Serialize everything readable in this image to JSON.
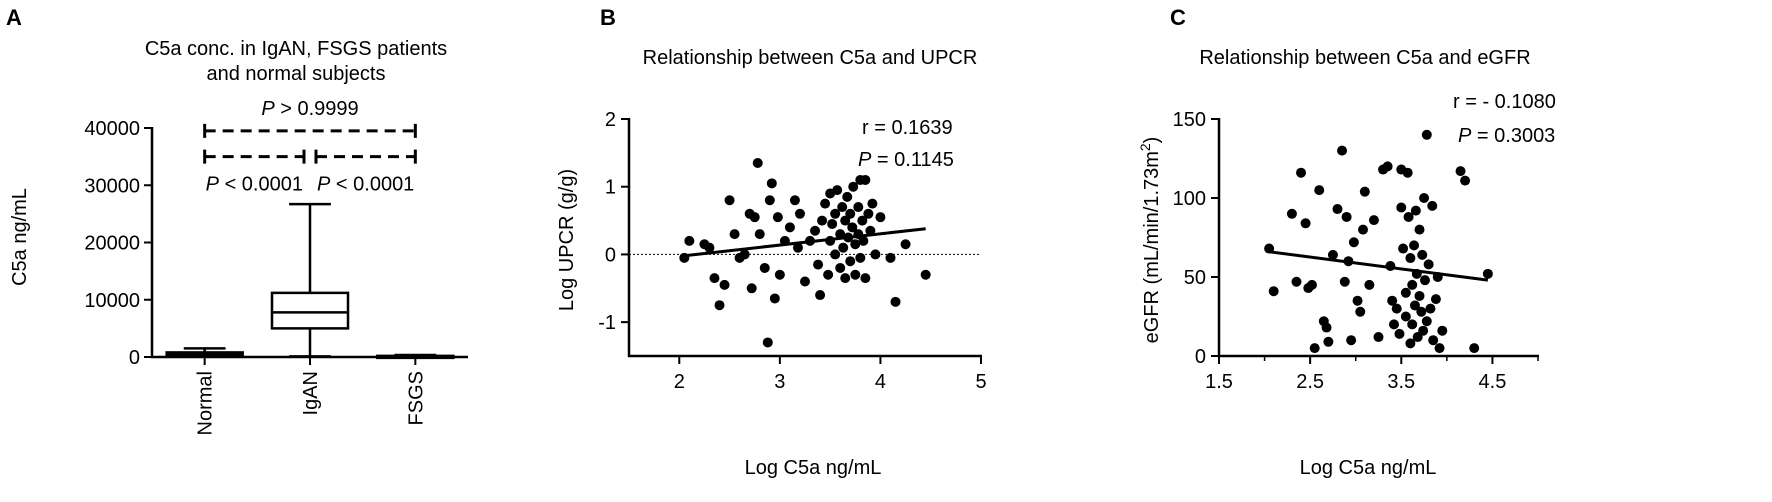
{
  "chart_data": [
    {
      "type": "box",
      "panel_label": "A",
      "title_lines": [
        "C5a conc. in IgAN, FSGS patients",
        "and normal subjects"
      ],
      "ylabel": "C5a ng/mL",
      "ylim": [
        0,
        40000
      ],
      "yticks": [
        0,
        10000,
        20000,
        30000,
        40000
      ],
      "categories": [
        "Normal",
        "IgAN",
        "FSGS"
      ],
      "boxes": [
        {
          "name": "Normal",
          "min": 80,
          "q1": 250,
          "median": 500,
          "q3": 800,
          "max": 1500,
          "fill": "#bdbdbd"
        },
        {
          "name": "IgAN",
          "min": 100,
          "q1": 5000,
          "median": 7800,
          "q3": 11200,
          "max": 26700,
          "fill": "#ffffff"
        },
        {
          "name": "FSGS",
          "min": 20,
          "q1": 60,
          "median": 120,
          "q3": 200,
          "max": 350,
          "fill": "#ffffff"
        }
      ],
      "annotations": [
        {
          "pair": [
            "Normal",
            "FSGS"
          ],
          "y": 39500,
          "label_italic": "P",
          "label_rest": " > 0.9999",
          "label_pos": "above"
        },
        {
          "pair": [
            "Normal",
            "IgAN"
          ],
          "y": 35000,
          "label_italic": "P",
          "label_rest": " < 0.0001",
          "label_pos": "below"
        },
        {
          "pair": [
            "IgAN",
            "FSGS"
          ],
          "y": 35000,
          "label_italic": "P",
          "label_rest": " < 0.0001",
          "label_pos": "below"
        }
      ]
    },
    {
      "type": "scatter",
      "panel_label": "B",
      "title": "Relationship between C5a and UPCR",
      "xlabel": "Log C5a ng/mL",
      "ylabel": "Log UPCR (g/g)",
      "xlim": [
        1.5,
        5
      ],
      "ylim": [
        -1.5,
        2
      ],
      "xticks": [
        2,
        3,
        4,
        5
      ],
      "yticks": [
        -1,
        0,
        1,
        2
      ],
      "reference_line_y": 0,
      "regression": {
        "x": [
          2.05,
          4.45
        ],
        "y": [
          -0.02,
          0.38
        ]
      },
      "stats": {
        "r_text": "r = 0.1639",
        "p_italic": "P",
        "p_rest": " = 0.1145"
      },
      "points": [
        [
          2.05,
          -0.05
        ],
        [
          2.1,
          0.2
        ],
        [
          2.25,
          0.15
        ],
        [
          2.3,
          0.1
        ],
        [
          2.35,
          -0.35
        ],
        [
          2.4,
          -0.75
        ],
        [
          2.45,
          -0.45
        ],
        [
          2.5,
          0.8
        ],
        [
          2.55,
          0.3
        ],
        [
          2.6,
          -0.05
        ],
        [
          2.65,
          0.0
        ],
        [
          2.7,
          0.6
        ],
        [
          2.72,
          -0.5
        ],
        [
          2.75,
          0.55
        ],
        [
          2.78,
          1.35
        ],
        [
          2.8,
          0.3
        ],
        [
          2.85,
          -0.2
        ],
        [
          2.88,
          -1.3
        ],
        [
          2.9,
          0.8
        ],
        [
          2.92,
          1.05
        ],
        [
          2.95,
          -0.65
        ],
        [
          2.98,
          0.55
        ],
        [
          3.0,
          -0.3
        ],
        [
          3.05,
          0.2
        ],
        [
          3.1,
          0.4
        ],
        [
          3.15,
          0.8
        ],
        [
          3.18,
          0.1
        ],
        [
          3.2,
          0.6
        ],
        [
          3.25,
          -0.4
        ],
        [
          3.3,
          0.2
        ],
        [
          3.35,
          0.35
        ],
        [
          3.38,
          -0.15
        ],
        [
          3.4,
          -0.6
        ],
        [
          3.42,
          0.5
        ],
        [
          3.45,
          0.75
        ],
        [
          3.48,
          -0.3
        ],
        [
          3.5,
          0.9
        ],
        [
          3.5,
          0.2
        ],
        [
          3.52,
          0.45
        ],
        [
          3.55,
          0.6
        ],
        [
          3.55,
          0.0
        ],
        [
          3.57,
          0.95
        ],
        [
          3.6,
          0.3
        ],
        [
          3.6,
          -0.2
        ],
        [
          3.62,
          0.7
        ],
        [
          3.63,
          0.1
        ],
        [
          3.65,
          0.5
        ],
        [
          3.65,
          -0.35
        ],
        [
          3.67,
          0.85
        ],
        [
          3.68,
          0.25
        ],
        [
          3.7,
          0.6
        ],
        [
          3.7,
          -0.1
        ],
        [
          3.72,
          0.4
        ],
        [
          3.73,
          1.0
        ],
        [
          3.75,
          0.15
        ],
        [
          3.75,
          -0.3
        ],
        [
          3.78,
          0.7
        ],
        [
          3.78,
          0.3
        ],
        [
          3.8,
          1.1
        ],
        [
          3.8,
          -0.05
        ],
        [
          3.82,
          0.5
        ],
        [
          3.83,
          0.2
        ],
        [
          3.85,
          1.1
        ],
        [
          3.85,
          -0.35
        ],
        [
          3.88,
          0.6
        ],
        [
          3.9,
          0.35
        ],
        [
          3.92,
          0.75
        ],
        [
          3.95,
          0.0
        ],
        [
          4.0,
          0.55
        ],
        [
          4.1,
          -0.05
        ],
        [
          4.15,
          -0.7
        ],
        [
          4.25,
          0.15
        ],
        [
          4.45,
          -0.3
        ]
      ]
    },
    {
      "type": "scatter",
      "panel_label": "C",
      "title": "Relationship between C5a and eGFR",
      "xlabel": "Log C5a ng/mL",
      "ylabel_main": "eGFR (mL/min/1.73m",
      "ylabel_sup": "2",
      "ylabel_end": ")",
      "xlim": [
        1.5,
        5
      ],
      "ylim": [
        0,
        150
      ],
      "xticks": [
        1.5,
        2.5,
        3.5,
        4.5
      ],
      "yticks": [
        0,
        50,
        100,
        150
      ],
      "regression": {
        "x": [
          2.05,
          4.45
        ],
        "y": [
          66,
          48
        ]
      },
      "stats": {
        "r_text": "r = - 0.1080",
        "p_italic": "P",
        "p_rest": " = 0.3003"
      },
      "points": [
        [
          2.05,
          68
        ],
        [
          2.1,
          41
        ],
        [
          2.3,
          90
        ],
        [
          2.35,
          47
        ],
        [
          2.4,
          116
        ],
        [
          2.45,
          84
        ],
        [
          2.48,
          43
        ],
        [
          2.52,
          45
        ],
        [
          2.55,
          5
        ],
        [
          2.6,
          105
        ],
        [
          2.65,
          22
        ],
        [
          2.68,
          18
        ],
        [
          2.7,
          9
        ],
        [
          2.75,
          64
        ],
        [
          2.8,
          93
        ],
        [
          2.85,
          130
        ],
        [
          2.88,
          47
        ],
        [
          2.9,
          88
        ],
        [
          2.92,
          60
        ],
        [
          2.95,
          10
        ],
        [
          2.98,
          72
        ],
        [
          3.02,
          35
        ],
        [
          3.05,
          28
        ],
        [
          3.08,
          80
        ],
        [
          3.1,
          104
        ],
        [
          3.15,
          45
        ],
        [
          3.2,
          86
        ],
        [
          3.25,
          12
        ],
        [
          3.3,
          118
        ],
        [
          3.35,
          120
        ],
        [
          3.38,
          57
        ],
        [
          3.4,
          35
        ],
        [
          3.42,
          20
        ],
        [
          3.45,
          30
        ],
        [
          3.48,
          14
        ],
        [
          3.5,
          118
        ],
        [
          3.5,
          94
        ],
        [
          3.52,
          68
        ],
        [
          3.55,
          40
        ],
        [
          3.55,
          25
        ],
        [
          3.57,
          116
        ],
        [
          3.58,
          88
        ],
        [
          3.6,
          62
        ],
        [
          3.6,
          8
        ],
        [
          3.62,
          45
        ],
        [
          3.62,
          20
        ],
        [
          3.64,
          70
        ],
        [
          3.65,
          32
        ],
        [
          3.66,
          92
        ],
        [
          3.67,
          52
        ],
        [
          3.68,
          12
        ],
        [
          3.7,
          80
        ],
        [
          3.7,
          38
        ],
        [
          3.72,
          28
        ],
        [
          3.73,
          64
        ],
        [
          3.74,
          16
        ],
        [
          3.75,
          100
        ],
        [
          3.76,
          48
        ],
        [
          3.78,
          140
        ],
        [
          3.78,
          22
        ],
        [
          3.8,
          58
        ],
        [
          3.82,
          30
        ],
        [
          3.84,
          95
        ],
        [
          3.85,
          10
        ],
        [
          3.88,
          36
        ],
        [
          3.9,
          50
        ],
        [
          3.92,
          5
        ],
        [
          3.95,
          16
        ],
        [
          4.15,
          117
        ],
        [
          4.2,
          111
        ],
        [
          4.3,
          5
        ],
        [
          4.45,
          52
        ]
      ]
    }
  ]
}
